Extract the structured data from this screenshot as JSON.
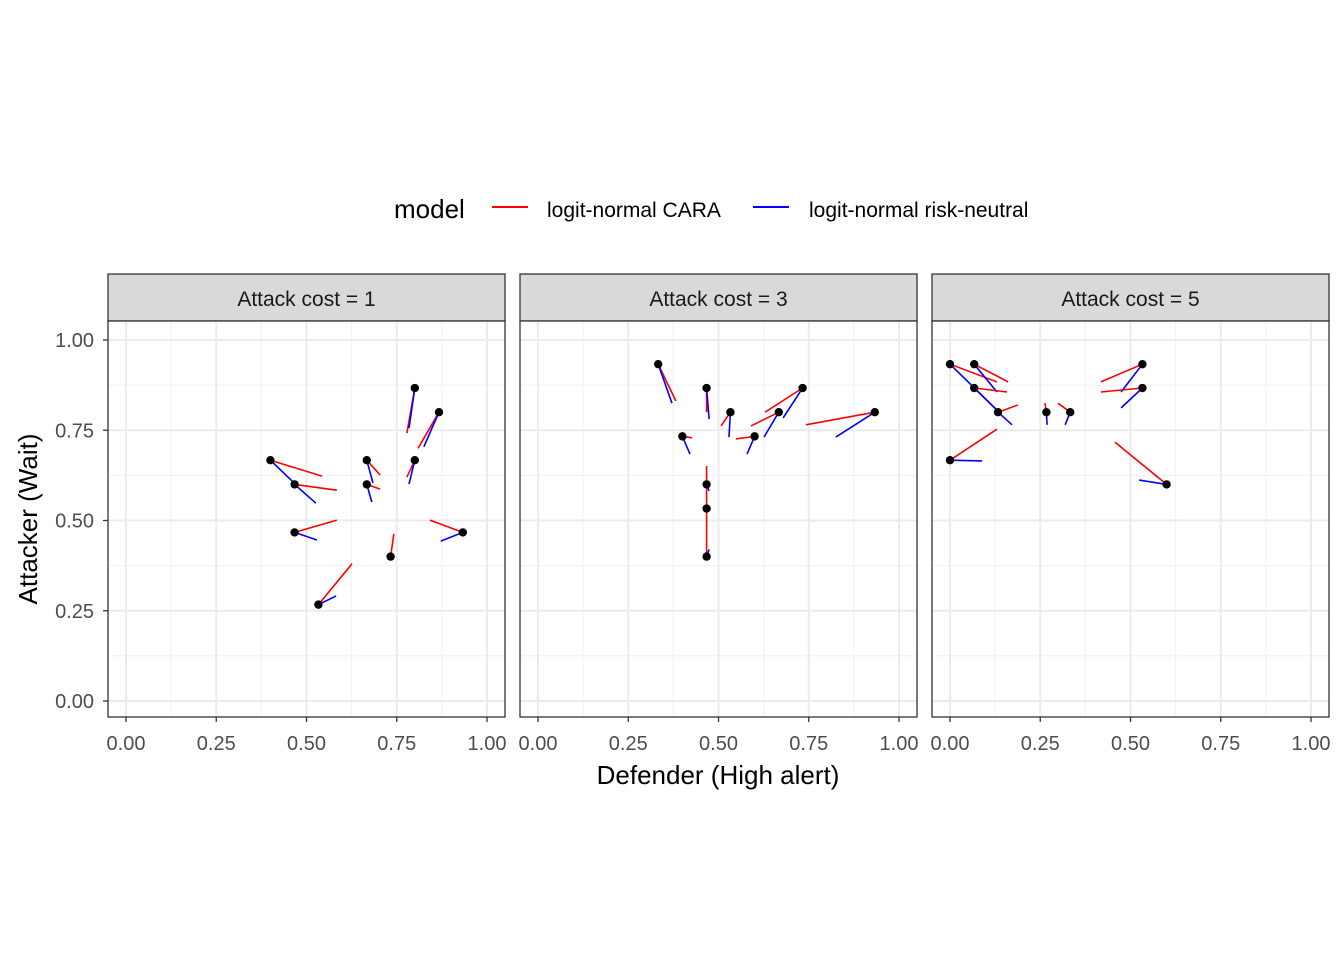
{
  "chart_data": {
    "type": "scatter",
    "xlabel": "Defender (High alert)",
    "ylabel": "Attacker (Wait)",
    "xlim": [
      0,
      1
    ],
    "ylim": [
      0,
      1
    ],
    "x_ticks": [
      "0.00",
      "0.25",
      "0.50",
      "0.75",
      "1.00"
    ],
    "y_ticks": [
      "0.00",
      "0.25",
      "0.50",
      "0.75",
      "1.00"
    ],
    "grid": true,
    "legend": {
      "title": "model",
      "position": "top",
      "entries": [
        {
          "label": "logit-normal CARA",
          "color": "#ff0000"
        },
        {
          "label": "logit-normal risk-neutral",
          "color": "#0000ff"
        }
      ]
    },
    "point_color": "#000000",
    "panels": [
      {
        "title": "Attack cost = 1",
        "points": [
          {
            "x": 0.4,
            "y": 0.667,
            "cara": [
              0.543,
              0.623
            ],
            "risk_neutral": [
              0.47,
              0.6
            ]
          },
          {
            "x": 0.467,
            "y": 0.6,
            "cara": [
              0.584,
              0.584
            ],
            "risk_neutral": [
              0.526,
              0.548
            ]
          },
          {
            "x": 0.667,
            "y": 0.667,
            "cara": [
              0.704,
              0.626
            ],
            "risk_neutral": [
              0.684,
              0.604
            ]
          },
          {
            "x": 0.667,
            "y": 0.6,
            "cara": [
              0.704,
              0.587
            ],
            "risk_neutral": [
              0.681,
              0.551
            ]
          },
          {
            "x": 0.8,
            "y": 0.867,
            "cara": [
              0.778,
              0.742
            ],
            "risk_neutral": [
              0.784,
              0.756
            ]
          },
          {
            "x": 0.867,
            "y": 0.8,
            "cara": [
              0.809,
              0.7
            ],
            "risk_neutral": [
              0.825,
              0.704
            ]
          },
          {
            "x": 0.8,
            "y": 0.667,
            "cara": [
              0.778,
              0.62
            ],
            "risk_neutral": [
              0.784,
              0.601
            ]
          },
          {
            "x": 0.467,
            "y": 0.467,
            "cara": [
              0.584,
              0.501
            ],
            "risk_neutral": [
              0.529,
              0.446
            ]
          },
          {
            "x": 0.933,
            "y": 0.467,
            "cara": [
              0.842,
              0.501
            ],
            "risk_neutral": [
              0.872,
              0.443
            ]
          },
          {
            "x": 0.733,
            "y": 0.4,
            "cara": [
              0.742,
              0.463
            ],
            "risk_neutral": [
              0.735,
              0.405
            ]
          },
          {
            "x": 0.533,
            "y": 0.267,
            "cara": [
              0.626,
              0.38
            ],
            "risk_neutral": [
              0.582,
              0.291
            ]
          }
        ]
      },
      {
        "title": "Attack cost = 3",
        "points": [
          {
            "x": 0.333,
            "y": 0.933,
            "cara": [
              0.382,
              0.831
            ],
            "risk_neutral": [
              0.371,
              0.825
            ]
          },
          {
            "x": 0.467,
            "y": 0.867,
            "cara": [
              0.467,
              0.8
            ],
            "risk_neutral": [
              0.474,
              0.781
            ]
          },
          {
            "x": 0.533,
            "y": 0.8,
            "cara": [
              0.507,
              0.762
            ],
            "risk_neutral": [
              0.529,
              0.731
            ]
          },
          {
            "x": 0.4,
            "y": 0.733,
            "cara": [
              0.427,
              0.729
            ],
            "risk_neutral": [
              0.421,
              0.684
            ]
          },
          {
            "x": 0.6,
            "y": 0.733,
            "cara": [
              0.548,
              0.726
            ],
            "risk_neutral": [
              0.579,
              0.684
            ]
          },
          {
            "x": 0.667,
            "y": 0.8,
            "cara": [
              0.59,
              0.762
            ],
            "risk_neutral": [
              0.626,
              0.731
            ]
          },
          {
            "x": 0.733,
            "y": 0.867,
            "cara": [
              0.629,
              0.8
            ],
            "risk_neutral": [
              0.679,
              0.784
            ]
          },
          {
            "x": 0.933,
            "y": 0.8,
            "cara": [
              0.742,
              0.765
            ],
            "risk_neutral": [
              0.825,
              0.731
            ]
          },
          {
            "x": 0.467,
            "y": 0.6,
            "cara": [
              0.467,
              0.651
            ],
            "risk_neutral": [
              0.474,
              0.582
            ]
          },
          {
            "x": 0.467,
            "y": 0.533,
            "cara": [
              0.467,
              0.6
            ],
            "risk_neutral": [
              0.469,
              0.53
            ]
          },
          {
            "x": 0.467,
            "y": 0.4,
            "cara": [
              0.467,
              0.533
            ],
            "risk_neutral": [
              0.474,
              0.42
            ]
          }
        ]
      },
      {
        "title": "Attack cost = 5",
        "points": [
          {
            "x": 0.0,
            "y": 0.933,
            "cara": [
              0.13,
              0.884
            ],
            "risk_neutral": [
              0.13,
              0.806
            ]
          },
          {
            "x": 0.067,
            "y": 0.933,
            "cara": [
              0.161,
              0.884
            ],
            "risk_neutral": [
              0.13,
              0.856
            ]
          },
          {
            "x": 0.067,
            "y": 0.867,
            "cara": [
              0.158,
              0.856
            ],
            "risk_neutral": [
              0.13,
              0.806
            ]
          },
          {
            "x": 0.133,
            "y": 0.8,
            "cara": [
              0.188,
              0.82
            ],
            "risk_neutral": [
              0.172,
              0.765
            ]
          },
          {
            "x": 0.267,
            "y": 0.8,
            "cara": [
              0.263,
              0.825
            ],
            "risk_neutral": [
              0.269,
              0.765
            ]
          },
          {
            "x": 0.333,
            "y": 0.8,
            "cara": [
              0.299,
              0.825
            ],
            "risk_neutral": [
              0.319,
              0.765
            ]
          },
          {
            "x": 0.0,
            "y": 0.667,
            "cara": [
              0.13,
              0.753
            ],
            "risk_neutral": [
              0.089,
              0.665
            ]
          },
          {
            "x": 0.533,
            "y": 0.933,
            "cara": [
              0.418,
              0.884
            ],
            "risk_neutral": [
              0.474,
              0.856
            ]
          },
          {
            "x": 0.533,
            "y": 0.867,
            "cara": [
              0.418,
              0.856
            ],
            "risk_neutral": [
              0.474,
              0.812
            ]
          },
          {
            "x": 0.6,
            "y": 0.6,
            "cara": [
              0.457,
              0.717
            ],
            "risk_neutral": [
              0.524,
              0.612
            ]
          }
        ]
      }
    ]
  }
}
